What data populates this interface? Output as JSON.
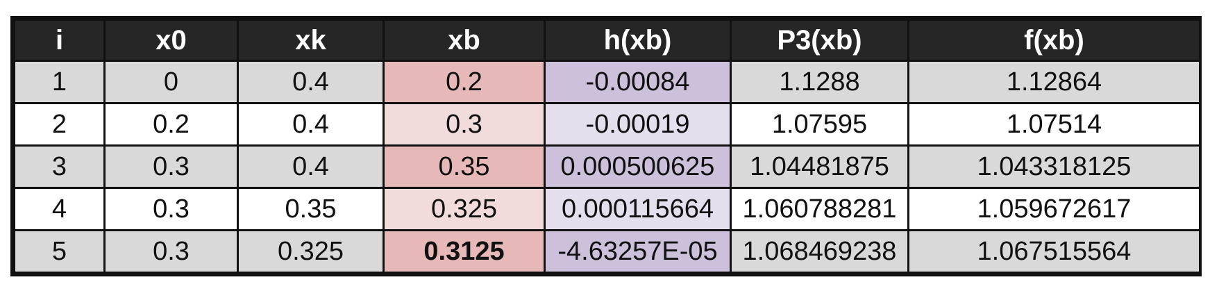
{
  "table": {
    "headers": [
      "i",
      "x0",
      "xk",
      "xb",
      "h(xb)",
      "P3(xb)",
      "f(xb)"
    ],
    "rows": [
      [
        "1",
        "0",
        "0.4",
        "0.2",
        "-0.00084",
        "1.1288",
        "1.12864"
      ],
      [
        "2",
        "0.2",
        "0.4",
        "0.3",
        "-0.00019",
        "1.07595",
        "1.07514"
      ],
      [
        "3",
        "0.3",
        "0.4",
        "0.35",
        "0.000500625",
        "1.04481875",
        "1.043318125"
      ],
      [
        "4",
        "0.3",
        "0.35",
        "0.325",
        "0.000115664",
        "1.060788281",
        "1.059672617"
      ],
      [
        "5",
        "0.3",
        "0.325",
        "0.3125",
        "-4.63257E-05",
        "1.068469238",
        "1.067515564"
      ]
    ]
  },
  "colors": {
    "header_bg": "#262626",
    "header_text": "#ffffff",
    "row_gray": "#d9d9d9",
    "row_white": "#ffffff",
    "xb_dark": "#e6b8b7",
    "xb_light": "#f2dcdb",
    "h_dark": "#ccc0da",
    "h_light": "#e4dfec",
    "border": "#111111"
  }
}
